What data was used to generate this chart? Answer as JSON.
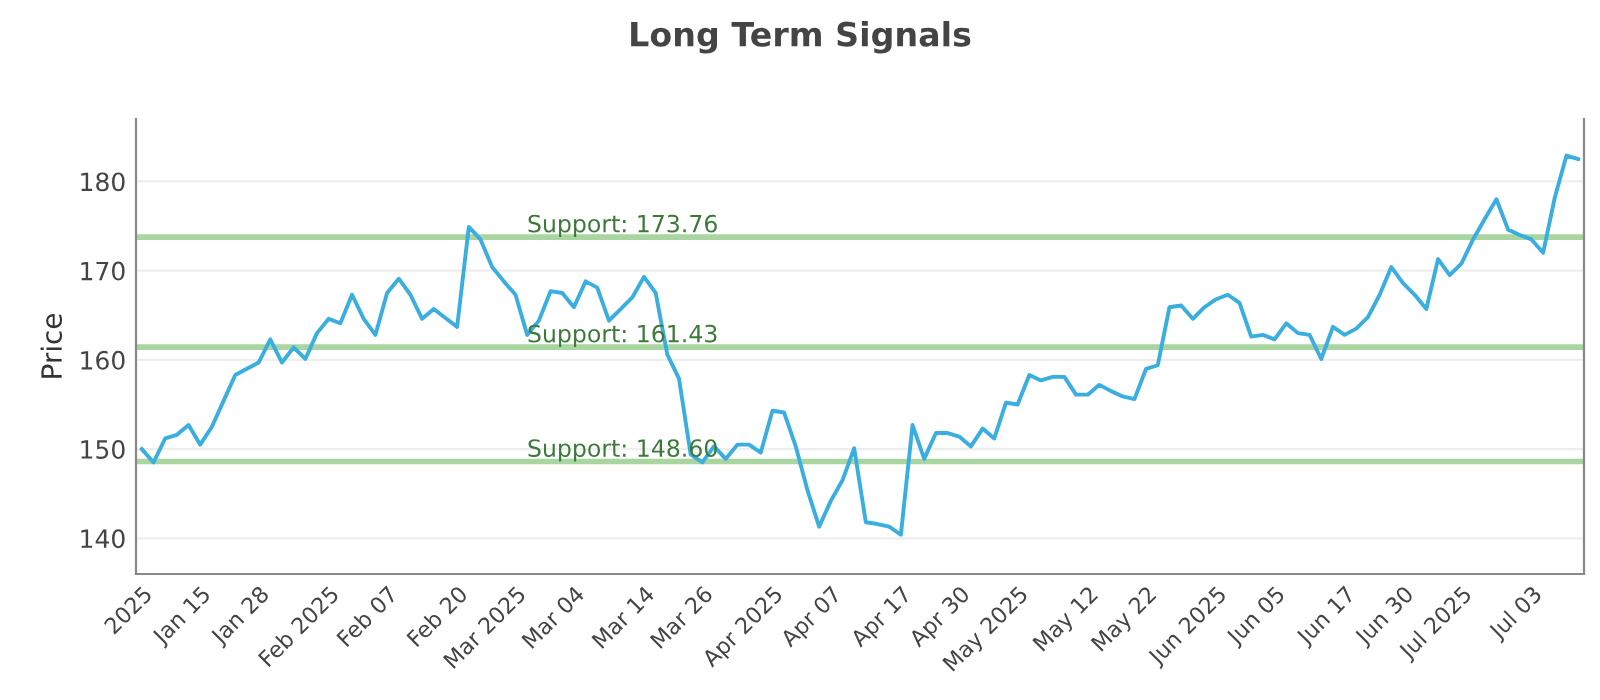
{
  "chart_data": {
    "type": "line",
    "title": "Long Term Signals",
    "ylabel": "Price",
    "categories": [
      "2025",
      null,
      null,
      null,
      null,
      "Jan 15",
      null,
      null,
      null,
      null,
      "Jan 28",
      null,
      null,
      null,
      null,
      null,
      "Feb 2025",
      null,
      null,
      null,
      null,
      "Feb 07",
      null,
      null,
      null,
      null,
      null,
      "Feb 20",
      null,
      null,
      null,
      null,
      "Mar 2025",
      null,
      null,
      null,
      null,
      "Mar 04",
      null,
      null,
      null,
      null,
      null,
      "Mar 14",
      null,
      null,
      null,
      null,
      "Mar 26",
      null,
      null,
      null,
      null,
      null,
      "Apr 2025",
      null,
      null,
      null,
      null,
      "Apr 07",
      null,
      null,
      null,
      null,
      null,
      "Apr 17",
      null,
      null,
      null,
      null,
      "Apr 30",
      null,
      null,
      null,
      null,
      "May 2025",
      null,
      null,
      null,
      null,
      null,
      "May 12",
      null,
      null,
      null,
      null,
      "May 22",
      null,
      null,
      null,
      null,
      null,
      "Jun 2025",
      null,
      null,
      null,
      null,
      "Jun 05",
      null,
      null,
      null,
      null,
      null,
      "Jun 17",
      null,
      null,
      null,
      null,
      "Jun 30",
      null,
      null,
      null,
      null,
      "Jul 2025",
      null,
      null,
      null,
      null,
      null,
      "Jul 03",
      null,
      null,
      null,
      null
    ],
    "series": [
      {
        "color": "#3aaee0",
        "values": [
          150.0,
          148.5,
          151.2,
          151.6,
          152.7,
          150.5,
          152.5,
          155.4,
          158.3,
          159.0,
          159.7,
          162.3,
          159.7,
          161.4,
          160.1,
          163.0,
          164.6,
          164.1,
          167.3,
          164.6,
          162.8,
          167.5,
          169.1,
          167.3,
          164.6,
          165.7,
          164.7,
          163.7,
          174.9,
          173.5,
          170.4,
          168.8,
          167.3,
          162.8,
          164.4,
          167.7,
          167.5,
          165.9,
          168.8,
          168.1,
          164.4,
          165.7,
          167.0,
          169.3,
          167.5,
          160.6,
          157.9,
          149.4,
          148.5,
          150.3,
          148.9,
          150.5,
          150.5,
          149.6,
          154.3,
          154.1,
          150.3,
          145.4,
          141.3,
          144.2,
          146.5,
          150.1,
          141.8,
          141.6,
          141.3,
          140.4,
          152.7,
          148.9,
          151.8,
          151.8,
          151.4,
          150.3,
          152.3,
          151.2,
          155.2,
          155.0,
          158.3,
          157.7,
          158.1,
          158.1,
          156.1,
          156.1,
          157.2,
          156.5,
          155.9,
          155.6,
          159.0,
          159.4,
          165.9,
          166.1,
          164.6,
          165.9,
          166.8,
          167.3,
          166.4,
          162.6,
          162.8,
          162.3,
          164.1,
          163.0,
          162.8,
          160.1,
          163.7,
          162.8,
          163.5,
          164.8,
          167.3,
          170.4,
          168.6,
          167.3,
          165.7,
          171.3,
          169.5,
          170.8,
          173.5,
          175.8,
          178.0,
          174.6,
          174.0,
          173.5,
          172.0,
          178.2,
          182.9,
          182.5
        ]
      }
    ],
    "ylim": [
      136,
      187
    ],
    "yticks": [
      140,
      150,
      160,
      170,
      180
    ],
    "grid": "y",
    "marker": "none",
    "line_style": "solid",
    "ref_lines": [
      {
        "axis": "y",
        "value": 173.76,
        "label": "Support: 173.76",
        "color": "#a8d5a0"
      },
      {
        "axis": "y",
        "value": 161.43,
        "label": "Support: 161.43",
        "color": "#a8d5a0"
      },
      {
        "axis": "y",
        "value": 148.6,
        "label": "Support: 148.60",
        "color": "#a8d5a0"
      }
    ]
  }
}
